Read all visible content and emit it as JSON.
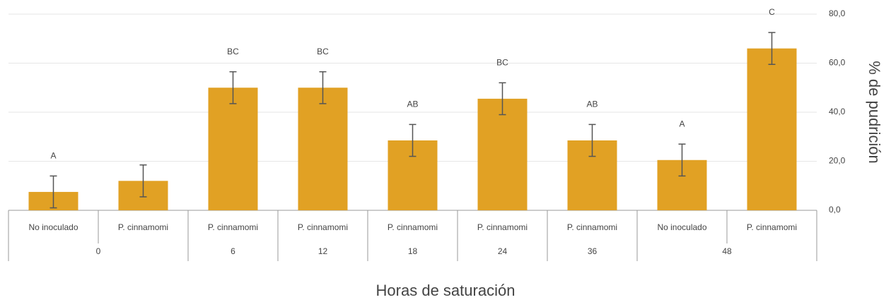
{
  "chart_data": {
    "type": "bar",
    "x_label": "Horas de saturación",
    "y_label": "% de pudrición",
    "groups": [
      {
        "label": "0",
        "categories": [
          "No inoculado",
          "P. cinnamomi"
        ]
      },
      {
        "label": "6",
        "categories": [
          "P. cinnamomi"
        ]
      },
      {
        "label": "12",
        "categories": [
          "P. cinnamomi"
        ]
      },
      {
        "label": "18",
        "categories": [
          "P. cinnamomi"
        ]
      },
      {
        "label": "24",
        "categories": [
          "P. cinnamomi"
        ]
      },
      {
        "label": "36",
        "categories": [
          "P. cinnamomi"
        ]
      },
      {
        "label": "48",
        "categories": [
          "No inoculado",
          "P. cinnamomi"
        ]
      }
    ],
    "values": [
      7.5,
      12,
      50,
      50,
      28.5,
      45.5,
      28.5,
      20.5,
      66
    ],
    "errors": [
      6.5,
      6.5,
      6.5,
      6.5,
      6.5,
      6.5,
      6.5,
      6.5,
      6.5
    ],
    "annotations": [
      "A",
      null,
      "BC",
      "BC",
      "AB",
      "BC",
      "AB",
      "A",
      "C"
    ],
    "color": "#e1a124",
    "ylim": [
      0,
      80
    ],
    "yticks": [
      {
        "value": 0,
        "label": "0,0"
      },
      {
        "value": 20,
        "label": "20,0"
      },
      {
        "value": 40,
        "label": "40,0"
      },
      {
        "value": 60,
        "label": "60,0"
      },
      {
        "value": 80,
        "label": "80,0"
      }
    ],
    "grid": true
  }
}
